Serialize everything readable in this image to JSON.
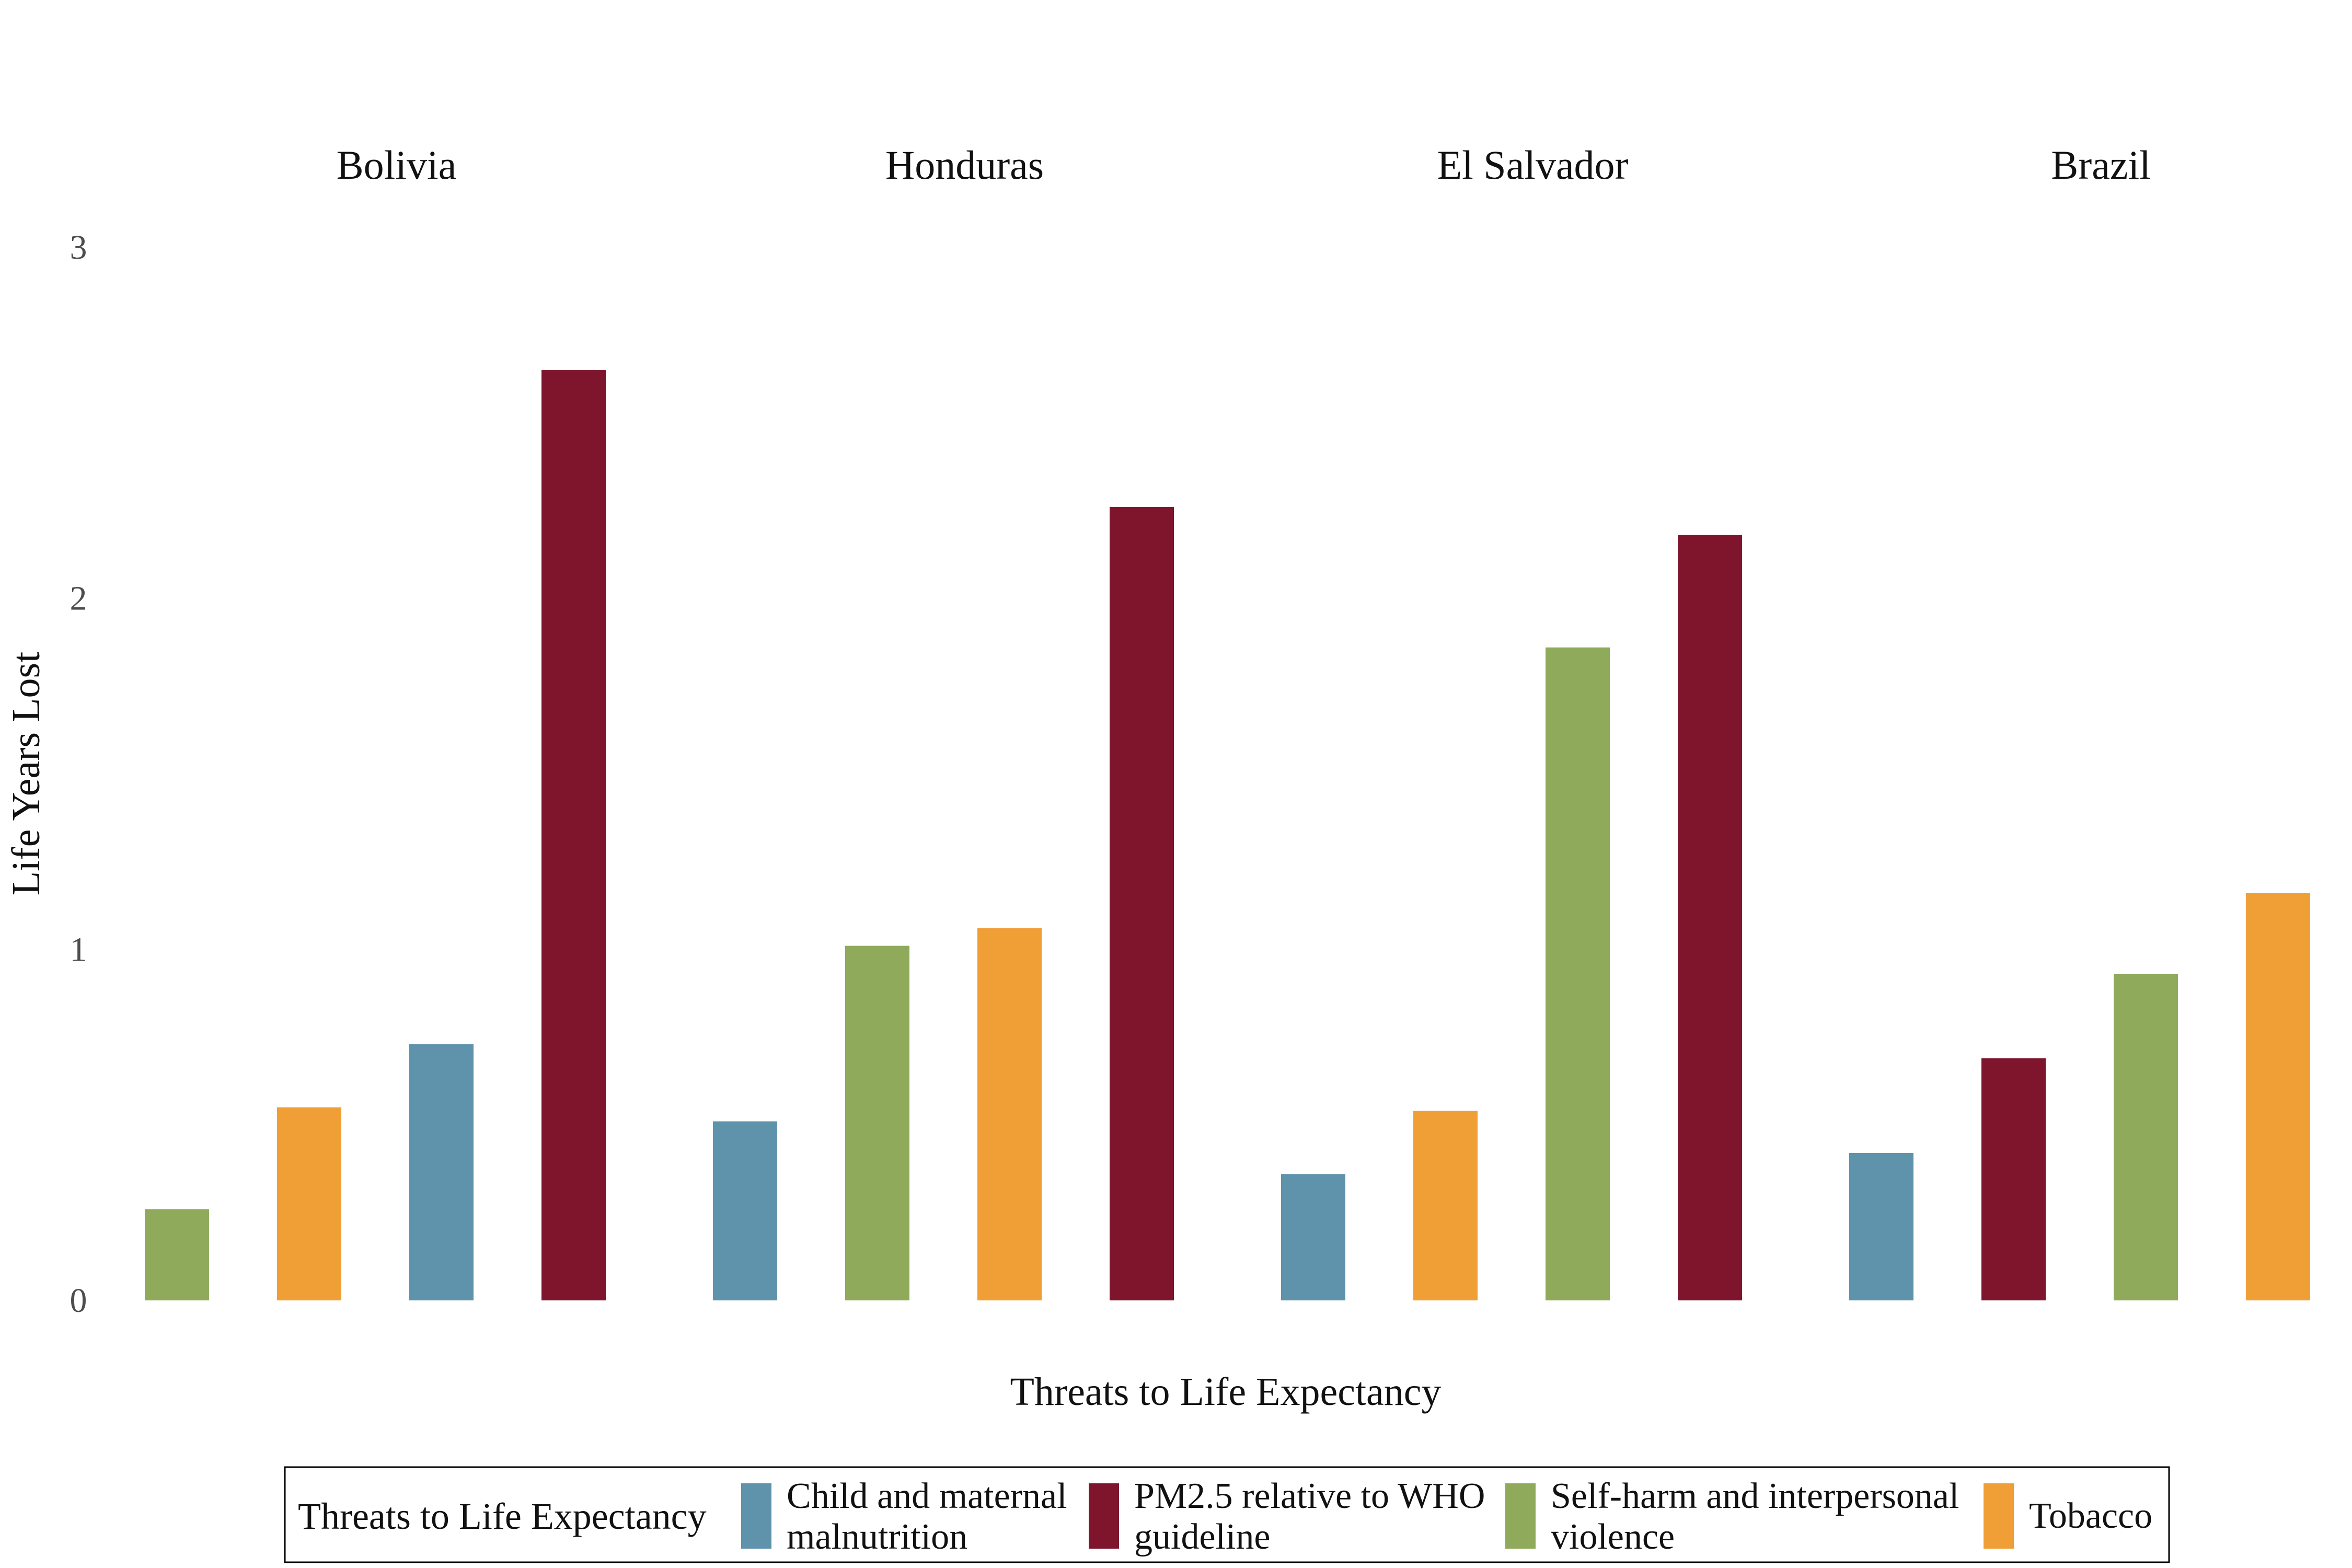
{
  "chart_data": {
    "type": "bar",
    "xlabel": "Threats to Life Expectancy",
    "ylabel": "Life Years Lost",
    "ylim": [
      0,
      3
    ],
    "yticks": [
      "0",
      "1",
      "2",
      "3"
    ],
    "grid": false,
    "legend_position": "bottom",
    "legend_title": "Threats to Life Expectancy",
    "legend": [
      {
        "key": "child",
        "lines": [
          "Child and maternal",
          "malnutrition"
        ],
        "color": "#5f93ab"
      },
      {
        "key": "pm25",
        "lines": [
          "PM2.5 relative to WHO",
          "guideline"
        ],
        "color": "#7e152d"
      },
      {
        "key": "selfharm",
        "lines": [
          "Self-harm and interpersonal",
          "violence"
        ],
        "color": "#8faa5b"
      },
      {
        "key": "tobacco",
        "lines": [
          "Tobacco"
        ],
        "color": "#f09e36"
      }
    ],
    "facets": [
      {
        "name": "Bolivia",
        "bars": [
          {
            "series": "selfharm",
            "value": 0.26
          },
          {
            "series": "tobacco",
            "value": 0.55
          },
          {
            "series": "child",
            "value": 0.73
          },
          {
            "series": "pm25",
            "value": 2.65
          }
        ]
      },
      {
        "name": "Honduras",
        "bars": [
          {
            "series": "child",
            "value": 0.51
          },
          {
            "series": "selfharm",
            "value": 1.01
          },
          {
            "series": "tobacco",
            "value": 1.06
          },
          {
            "series": "pm25",
            "value": 2.26
          }
        ]
      },
      {
        "name": "El Salvador",
        "bars": [
          {
            "series": "child",
            "value": 0.36
          },
          {
            "series": "tobacco",
            "value": 0.54
          },
          {
            "series": "selfharm",
            "value": 1.86
          },
          {
            "series": "pm25",
            "value": 2.18
          }
        ]
      },
      {
        "name": "Brazil",
        "bars": [
          {
            "series": "child",
            "value": 0.42
          },
          {
            "series": "pm25",
            "value": 0.69
          },
          {
            "series": "selfharm",
            "value": 0.93
          },
          {
            "series": "tobacco",
            "value": 1.16
          }
        ]
      }
    ]
  }
}
